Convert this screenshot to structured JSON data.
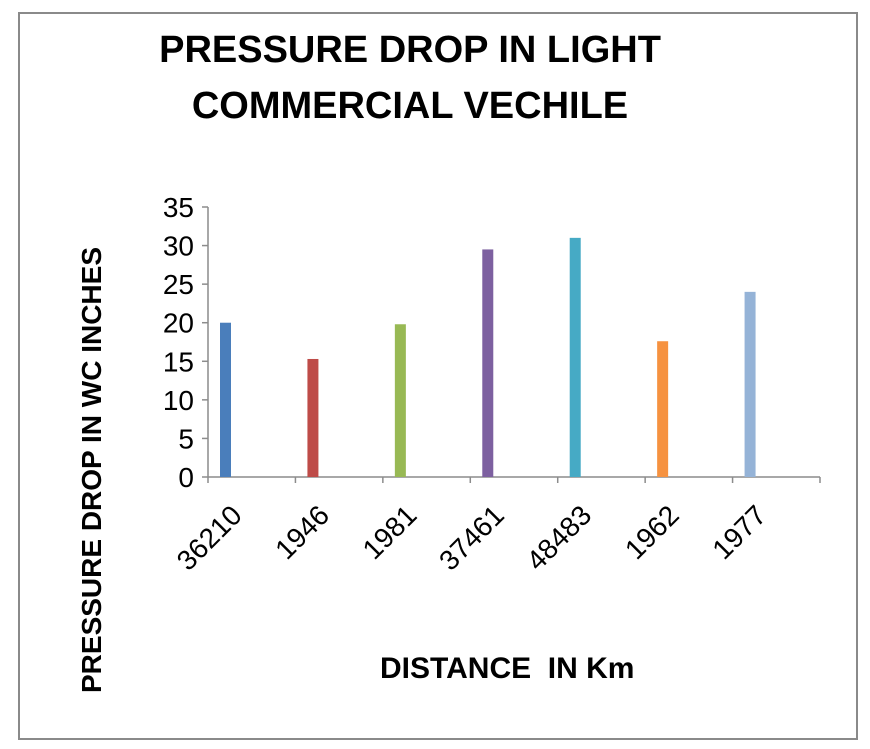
{
  "chart_data": {
    "type": "bar",
    "title_lines": [
      "PRESSURE DROP IN LIGHT",
      "COMMERCIAL VECHILE"
    ],
    "xlabel": "DISTANCE  IN Km",
    "ylabel": "PRESSURE DROP IN WC INCHES",
    "categories": [
      "36210",
      "1946",
      "1981",
      "37461",
      "48483",
      "1962",
      "1977"
    ],
    "values": [
      20,
      15.3,
      19.8,
      29.5,
      31,
      17.6,
      24
    ],
    "colors": [
      "#4a7ebb",
      "#be4b48",
      "#98b954",
      "#7d60a0",
      "#46aac5",
      "#f69240",
      "#95b3d7"
    ],
    "ylim": [
      0,
      35
    ],
    "yticks": [
      0,
      5,
      10,
      15,
      20,
      25,
      30,
      35
    ],
    "grid": false,
    "legend": "none"
  }
}
